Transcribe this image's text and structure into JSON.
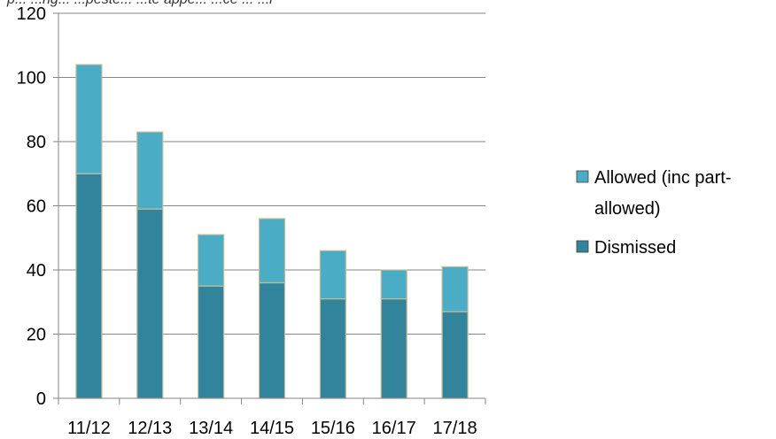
{
  "chart_data": {
    "type": "bar",
    "stacked": true,
    "title_fragment": "p... ...ng... ...peste... ...te appe... ...ce ... ...r",
    "categories": [
      "11/12",
      "12/13",
      "13/14",
      "14/15",
      "15/16",
      "16/17",
      "17/18"
    ],
    "series": [
      {
        "name": "Dismissed",
        "values": [
          70,
          59,
          35,
          36,
          31,
          31,
          27
        ],
        "color": "#31849b"
      },
      {
        "name": "Allowed (inc part-allowed)",
        "values": [
          34,
          24,
          16,
          20,
          15,
          9,
          14
        ],
        "color": "#4bacc6"
      }
    ],
    "ylim": [
      0,
      120
    ],
    "yticks": [
      "0",
      "20",
      "40",
      "60",
      "80",
      "100",
      "120"
    ],
    "grid": true,
    "legend": {
      "position": "right",
      "entries": [
        {
          "lines": [
            "Allowed (inc part-",
            "allowed)"
          ],
          "color": "#4bacc6"
        },
        {
          "lines": [
            "Dismissed"
          ],
          "color": "#31849b"
        }
      ]
    },
    "colors": {
      "gridline": "#868686",
      "axis": "#868686",
      "bar_border": "#c4bd97",
      "legend_border": "#404040"
    }
  }
}
